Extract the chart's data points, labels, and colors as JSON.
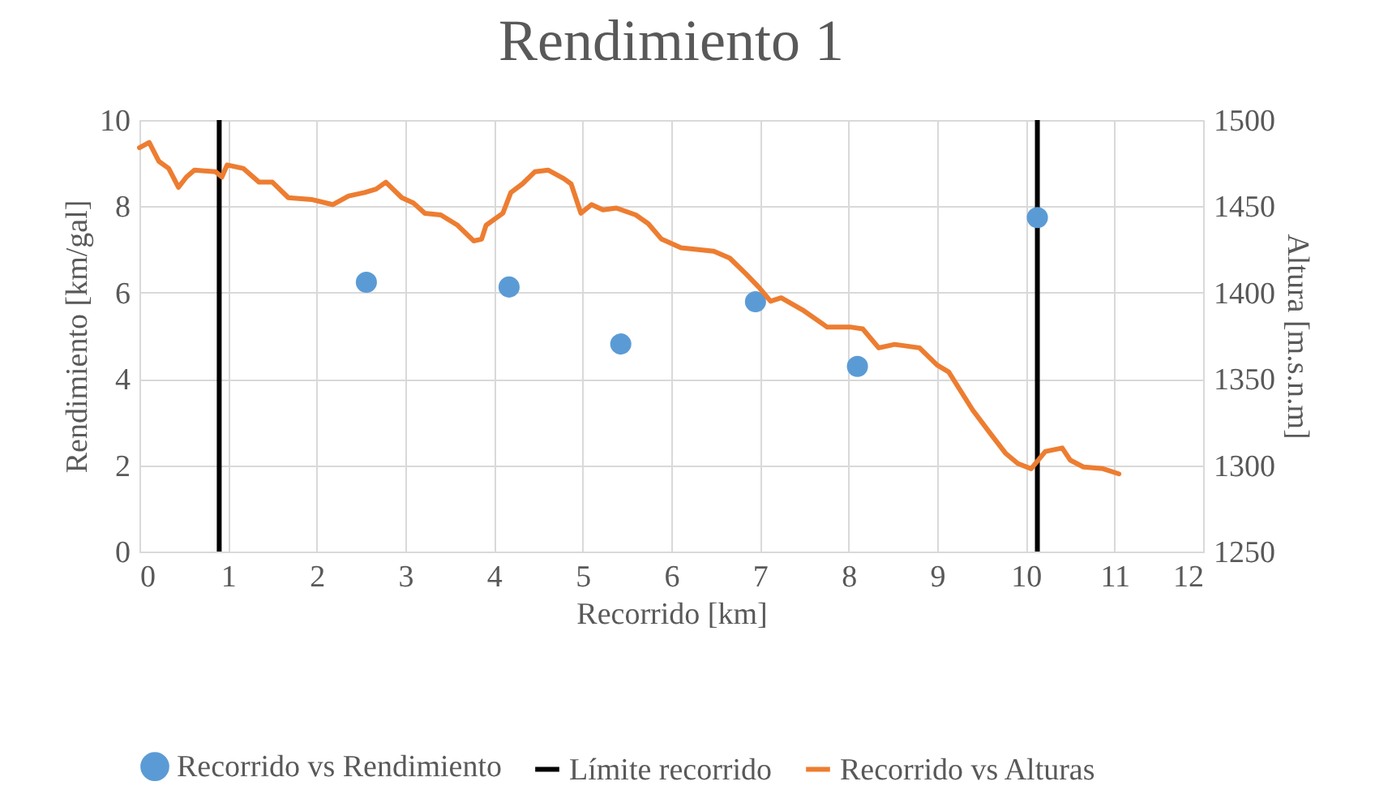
{
  "chart_data": {
    "type": "scatter",
    "title": "Rendimiento 1",
    "xlabel": "Recorrido [km]",
    "ylabel": "Rendimiento [km/gal]",
    "y2label": "Altura [m.s.n.m]",
    "xlim": [
      0,
      12
    ],
    "xticks": [
      0,
      1,
      2,
      3,
      4,
      5,
      6,
      7,
      8,
      9,
      10,
      11,
      12
    ],
    "ylim": [
      0,
      10
    ],
    "yticks": [
      0,
      2,
      4,
      6,
      8,
      10
    ],
    "y2lim": [
      1250,
      1500
    ],
    "y2ticks": [
      1250,
      1300,
      1350,
      1400,
      1450,
      1500
    ],
    "grid": true,
    "legend": "bottom",
    "series": [
      {
        "name": "Recorrido vs Rendimiento",
        "marker": "circle",
        "color": "#5b9bd5",
        "x": [
          2.56,
          4.17,
          5.43,
          6.95,
          8.1,
          10.13
        ],
        "values": [
          6.24,
          6.13,
          4.81,
          5.79,
          4.29,
          7.74
        ]
      },
      {
        "name": "Recorrido vs Alturas",
        "type": "line",
        "axis": "y2",
        "color": "#ed7d31",
        "line_style": "solid",
        "x": [
          0,
          0.11,
          0.22,
          0.33,
          0.44,
          0.53,
          0.62,
          0.86,
          0.93,
          0.99,
          1.17,
          1.35,
          1.5,
          1.68,
          1.94,
          2.18,
          2.36,
          2.54,
          2.67,
          2.78,
          2.96,
          3.09,
          3.22,
          3.4,
          3.59,
          3.77,
          3.86,
          3.91,
          4.1,
          4.19,
          4.32,
          4.46,
          4.61,
          4.79,
          4.87,
          4.98,
          5.1,
          5.23,
          5.38,
          5.6,
          5.74,
          5.89,
          6.11,
          6.48,
          6.66,
          6.84,
          6.99,
          7.12,
          7.24,
          7.48,
          7.76,
          8.03,
          8.16,
          8.34,
          8.52,
          8.8,
          9.0,
          9.13,
          9.4,
          9.62,
          9.77,
          9.91,
          10.06,
          10.22,
          10.41,
          10.5,
          10.65,
          10.87,
          11.05
        ],
        "values": [
          1484,
          1487,
          1476,
          1472,
          1461,
          1467,
          1471,
          1470,
          1467,
          1474,
          1472,
          1464,
          1464,
          1455,
          1454,
          1451,
          1456,
          1458,
          1460,
          1464,
          1455,
          1452,
          1446,
          1445,
          1439,
          1430,
          1431,
          1439,
          1446,
          1458,
          1463,
          1470,
          1471,
          1466,
          1463,
          1446,
          1451,
          1448,
          1449,
          1445,
          1440,
          1431,
          1426,
          1424,
          1420,
          1411,
          1403,
          1395,
          1397,
          1390,
          1380,
          1380,
          1379,
          1368,
          1370,
          1368,
          1358,
          1354,
          1332,
          1317,
          1307,
          1301,
          1298,
          1308,
          1310,
          1303,
          1299,
          1298,
          1295
        ]
      }
    ],
    "ref_lines": [
      {
        "axis": "x",
        "value": 0.9,
        "label": "Límite recorrido",
        "color": "#000000",
        "line_style": "solid"
      },
      {
        "axis": "x",
        "value": 10.13,
        "color": "#000000",
        "line_style": "solid"
      }
    ]
  }
}
